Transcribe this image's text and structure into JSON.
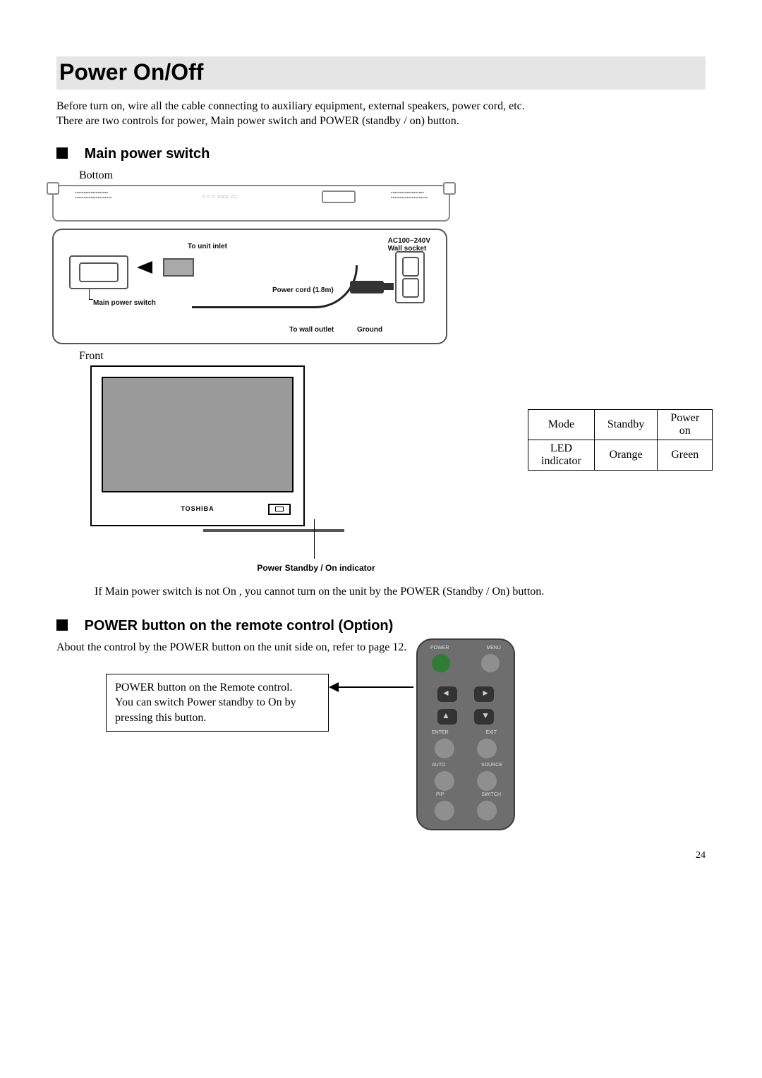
{
  "page": {
    "number": "24"
  },
  "title": "Power On/Off",
  "intro_line1": "Before turn on, wire all the cable connecting to auxiliary equipment, external speakers, power cord, etc.",
  "intro_line2": "There are two controls for power, Main power switch and POWER (standby / on) button.",
  "section1": {
    "heading": "Main power switch",
    "label_bottom": "Bottom",
    "label_front": "Front",
    "diagram": {
      "to_unit_inlet": "To unit inlet",
      "wall_socket_line1": "AC100~240V",
      "wall_socket_line2": "Wall socket",
      "power_cord": "Power cord (1.8m)",
      "main_power_switch": "Main power switch",
      "to_wall_outlet": "To wall outlet",
      "ground": "Ground"
    },
    "front": {
      "brand": "TOSHIBA",
      "indicator_caption": "Power Standby / On indicator"
    },
    "table": {
      "r1c1": "Mode",
      "r1c2": "Standby",
      "r1c3": "Power on",
      "r2c1": "LED indicator",
      "r2c2": "Orange",
      "r2c3": "Green"
    },
    "note": "If Main power switch is not On , you cannot turn on the unit by the POWER (Standby / On) button."
  },
  "section2": {
    "heading": "POWER button on the remote control (Option)",
    "sub": "About the control by the POWER button on the unit side on, refer to page 12.",
    "callout_line1": "POWER button on the Remote control.",
    "callout_line2": "You can switch Power standby to On by",
    "callout_line3": "pressing this button.",
    "remote_labels": {
      "power": "POWER",
      "menu": "MENU",
      "enter": "ENTER",
      "exit": "EXIT",
      "auto": "AUTO",
      "source": "SOURCE",
      "pip": "PIP",
      "switch": "SWITCH"
    }
  },
  "colors": {
    "title_bg": "#e5e5e5",
    "diagram_border": "#555555",
    "remote_body": "#6e6e6e",
    "remote_power_btn": "#2e7d32",
    "remote_grey_btn": "#8f8f8f",
    "remote_dark_btn": "#333333"
  }
}
